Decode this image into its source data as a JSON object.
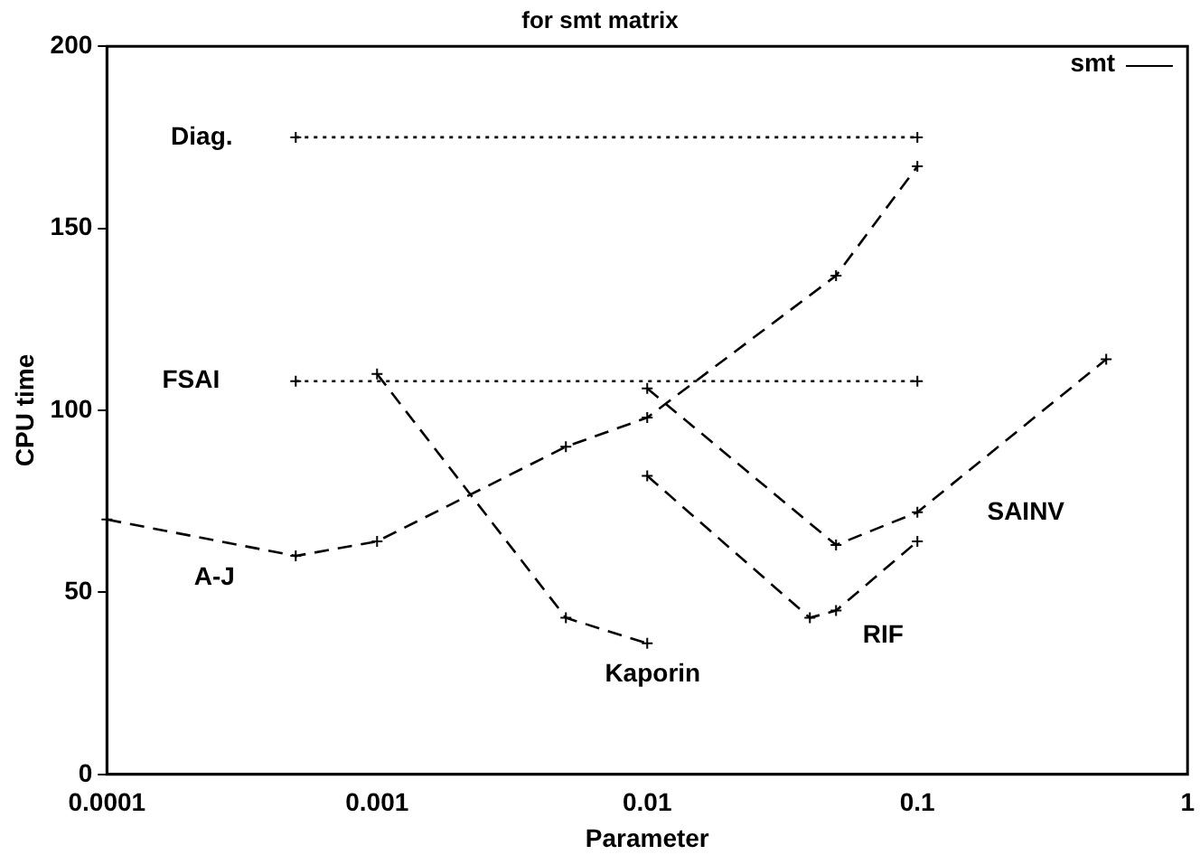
{
  "chart_data": {
    "type": "line",
    "title": "for smt matrix",
    "xlabel": "Parameter",
    "ylabel": "CPU time",
    "log": "x",
    "xlim": [
      0.0001,
      1
    ],
    "xticks": [
      0.0001,
      0.001,
      0.01,
      0.1,
      1
    ],
    "ylim": [
      0,
      200
    ],
    "yticks": [
      0,
      50,
      100,
      150,
      200
    ],
    "grid": false,
    "legend": false,
    "marker": "cross",
    "series": [
      {
        "name": "Diag.",
        "color": "#000000",
        "line_style": "dotted",
        "x": [
          0.0005,
          0.1
        ],
        "values": [
          175,
          175
        ]
      },
      {
        "name": "FSAI",
        "color": "#000000",
        "line_style": "dotted",
        "x": [
          0.0005,
          0.1
        ],
        "values": [
          108,
          108
        ]
      },
      {
        "name": "A-J",
        "color": "#000000",
        "line_style": "dashed",
        "x": [
          0.0001,
          0.0005,
          0.001,
          0.005,
          0.01,
          0.05,
          0.1
        ],
        "values": [
          70,
          60,
          64,
          90,
          98,
          137,
          167
        ]
      },
      {
        "name": "Kaporin",
        "color": "#000000",
        "line_style": "dashed",
        "x": [
          0.001,
          0.005,
          0.01
        ],
        "values": [
          110,
          43,
          36
        ]
      },
      {
        "name": "SAINV",
        "color": "#000000",
        "line_style": "dashed",
        "x": [
          0.01,
          0.05,
          0.1,
          0.5
        ],
        "values": [
          106,
          63,
          72,
          114
        ]
      },
      {
        "name": "RIF",
        "color": "#000000",
        "line_style": "dashed",
        "x": [
          0.01,
          0.04,
          0.05,
          0.1
        ],
        "values": [
          82,
          43,
          45,
          64
        ]
      }
    ],
    "annotations": [
      "smt"
    ]
  }
}
